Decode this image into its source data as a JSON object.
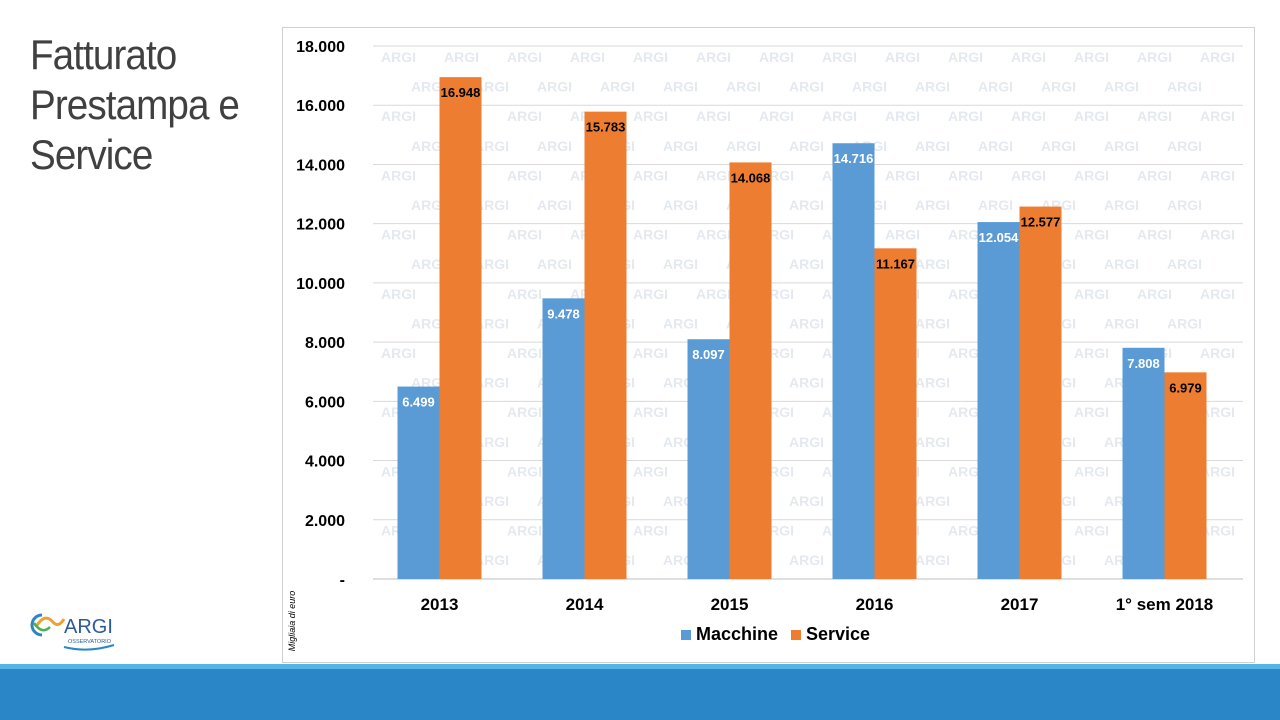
{
  "slide": {
    "title": "Fatturato Prestampa e Service",
    "logo_text": "ARGI",
    "logo_subtext": "OSSERVATORIO",
    "watermark_text": "ARGI"
  },
  "chart_data": {
    "type": "bar",
    "categories": [
      "2013",
      "2014",
      "2015",
      "2016",
      "2017",
      "1° sem 2018"
    ],
    "series": [
      {
        "name": "Macchine",
        "color": "#5b9bd5",
        "values": [
          6499,
          9478,
          8097,
          14716,
          12054,
          7808
        ],
        "labels": [
          "6.499",
          "9.478",
          "8.097",
          "14.716",
          "12.054",
          "7.808"
        ]
      },
      {
        "name": "Service",
        "color": "#ed7d31",
        "values": [
          16948,
          15783,
          14068,
          11167,
          12577,
          6979
        ],
        "labels": [
          "16.948",
          "15.783",
          "14.068",
          "11.167",
          "12.577",
          "6.979"
        ]
      }
    ],
    "ylim": [
      0,
      18000
    ],
    "yticks": [
      0,
      2000,
      4000,
      6000,
      8000,
      10000,
      12000,
      14000,
      16000,
      18000
    ],
    "ytick_labels": [
      "-",
      "2.000",
      "4.000",
      "6.000",
      "8.000",
      "10.000",
      "12.000",
      "14.000",
      "16.000",
      "18.000"
    ],
    "ylabel": "Migliaia di euro",
    "xlabel": "",
    "title": "",
    "legend_position": "bottom",
    "grid": true
  }
}
